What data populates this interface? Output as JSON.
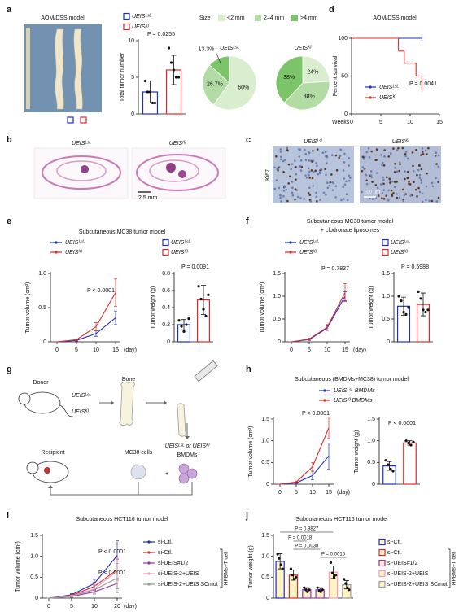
{
  "figure": {
    "panel_labels": [
      "a",
      "b",
      "c",
      "d",
      "e",
      "f",
      "g",
      "h",
      "i",
      "j"
    ],
    "a_photo_title": "AOM/DSS model",
    "size_legend": {
      "title": "Size",
      "labels": [
        "<2 mm",
        "2–4 mm",
        ">4 mm"
      ],
      "colors": [
        "#d9edcf",
        "#b3dca5",
        "#7cc46a"
      ]
    },
    "b_labels": [
      "UEISᴸˢᴸ",
      "UEISᴷᴵ"
    ],
    "b_scale": "2.5 mm",
    "c_labels": [
      "UEISᴸˢᴸ",
      "UEISᴷᴵ"
    ],
    "c_stain": "Ki67",
    "c_scale": "100 μm",
    "g": {
      "donor": "Donor",
      "genotypes": [
        "UEISᴸˢᴸ",
        "UEISᴷᴵ"
      ],
      "bone": "Bone",
      "recipient": "Recipient",
      "cells": "MC38 cells",
      "plus": "+",
      "bmdm_line1": "UEISᴸˢᴸ or UEISᴷᴵ",
      "bmdm_line2": "BMDMs"
    }
  },
  "chart_data": [
    {
      "type": "bar",
      "ylabel": "Total tumor number",
      "categories": [
        "UEISᴸˢᴸ",
        "UEISᴷᴵ"
      ],
      "values": [
        3,
        6
      ],
      "errors": [
        1.5,
        2
      ],
      "points": [
        [
          4.5,
          3,
          3,
          1.5,
          1.5
        ],
        [
          9,
          7,
          6,
          5,
          5
        ]
      ],
      "colors": [
        "#1f2fbf",
        "#e02828"
      ],
      "fill": "#ffffff",
      "ylim": [
        0,
        10
      ],
      "yticks": [
        0,
        5,
        10
      ],
      "annotations": [
        "P = 0.0255"
      ]
    },
    {
      "type": "pie",
      "title": "UEISᴸˢᴸ",
      "values": [
        60,
        26.7,
        13.3
      ],
      "value_labels": [
        "60%",
        "26.7%",
        "13.3%"
      ],
      "colors": [
        "#d9edcf",
        "#b3dca5",
        "#7cc46a"
      ]
    },
    {
      "type": "pie",
      "title": "UEISᴷᴵ",
      "values": [
        24,
        38,
        38
      ],
      "value_labels": [
        "24%",
        "38%",
        "38%"
      ],
      "colors": [
        "#d9edcf",
        "#b3dca5",
        "#7cc46a"
      ]
    },
    {
      "type": "line",
      "step": true,
      "title": "AOM/DSS model",
      "xlabel": "Weeks",
      "ylabel": "Percent survival",
      "xlim": [
        0,
        15
      ],
      "xticks": [
        0,
        5,
        10,
        15
      ],
      "ylim": [
        0,
        100
      ],
      "yticks": [
        0,
        50,
        100
      ],
      "series": [
        {
          "name": "UEISᴸˢᴸ",
          "color": "#1f2fbf",
          "x": [
            0,
            12
          ],
          "values": [
            100,
            100
          ]
        },
        {
          "name": "UEISᴷᴵ",
          "color": "#e02828",
          "x": [
            0,
            8,
            9,
            11,
            12
          ],
          "values": [
            100,
            83,
            67,
            50,
            33
          ]
        }
      ],
      "annotations": [
        "P = 0.0041"
      ]
    },
    {
      "type": "line",
      "title": "Subcutaneous MC38 tumor model",
      "xlabel": "(day)",
      "ylabel": "Tumor volume (cm³)",
      "categories": [
        "0",
        "5",
        "10",
        "15"
      ],
      "ylim": [
        0,
        1
      ],
      "yticks": [
        0,
        0.5,
        {
          "value": 1,
          "label": "1.0"
        }
      ],
      "series": [
        {
          "name": "UEISᴸˢᴸ",
          "color": "#1f2fbf",
          "values": [
            0,
            0.02,
            0.12,
            0.35
          ],
          "errors": [
            0,
            0.01,
            0.04,
            0.1
          ]
        },
        {
          "name": "UEISᴷᴵ",
          "color": "#e02828",
          "values": [
            0,
            0.03,
            0.22,
            0.72
          ],
          "errors": [
            0,
            0.01,
            0.06,
            0.2
          ]
        }
      ],
      "annotations": [
        "P < 0.0001"
      ]
    },
    {
      "type": "bar",
      "ylabel": "Tumor weight (g)",
      "categories": [
        "UEISᴸˢᴸ",
        "UEISᴷᴵ"
      ],
      "values": [
        0.2,
        0.49
      ],
      "errors": [
        0.06,
        0.17
      ],
      "points": [
        [
          0.25,
          0.18,
          0.12,
          0.2,
          0.27
        ],
        [
          0.65,
          0.5,
          0.38,
          0.3,
          0.55
        ]
      ],
      "colors": [
        "#1f2fbf",
        "#e02828"
      ],
      "fill": "#ffffff",
      "ylim": [
        0,
        0.8
      ],
      "yticks": [
        0,
        0.2,
        0.4,
        0.6,
        0.8
      ],
      "annotations": [
        "P = 0.0091"
      ]
    },
    {
      "type": "line",
      "title": "Subcutaneous MC38 tumor model",
      "subtitle": "+ clodronate liposomes",
      "xlabel": "(day)",
      "ylabel": "Tumor volume (cm³)",
      "categories": [
        "0",
        "5",
        "10",
        "15"
      ],
      "ylim": [
        0,
        1.5
      ],
      "yticks": [
        0,
        0.5,
        {
          "value": 1,
          "label": "1.0"
        },
        1.5
      ],
      "series": [
        {
          "name": "UEISᴸˢᴸ",
          "color": "#1f2fbf",
          "values": [
            0,
            0.05,
            0.3,
            1.0
          ],
          "errors": [
            0,
            0.02,
            0.05,
            0.1
          ]
        },
        {
          "name": "UEISᴷᴵ",
          "color": "#e02828",
          "values": [
            0,
            0.06,
            0.32,
            1.08
          ],
          "errors": [
            0,
            0.02,
            0.06,
            0.2
          ]
        }
      ],
      "annotations": [
        "P = 0.7837"
      ]
    },
    {
      "type": "bar",
      "ylabel": "Tumor weight (g)",
      "categories": [
        "UEISᴸˢᴸ",
        "UEISᴷᴵ"
      ],
      "values": [
        0.78,
        0.82
      ],
      "errors": [
        0.2,
        0.25
      ],
      "points": [
        [
          1.0,
          0.9,
          0.65,
          0.6,
          0.75
        ],
        [
          1.1,
          0.95,
          0.7,
          0.65,
          0.7
        ]
      ],
      "colors": [
        "#1f2fbf",
        "#e02828"
      ],
      "fill": "#ffffff",
      "ylim": [
        0,
        1.5
      ],
      "yticks": [
        0,
        0.5,
        {
          "value": 1,
          "label": "1.0"
        },
        1.5
      ],
      "annotations": [
        "P = 0.5988"
      ]
    },
    {
      "type": "line",
      "title": "Subcutaneous (BMDMs+MC38) tumor model",
      "xlabel": "(day)",
      "ylabel": "Tumor volume (cm³)",
      "categories": [
        "0",
        "5",
        "10",
        "15"
      ],
      "ylim": [
        0,
        1.5
      ],
      "yticks": [
        0,
        0.5,
        {
          "value": 1,
          "label": "1.0"
        },
        1.5
      ],
      "series": [
        {
          "name": "UEISᴸˢᴸ BMDMs",
          "color": "#1f2fbf",
          "values": [
            0,
            0.03,
            0.2,
            0.65
          ],
          "errors": [
            0,
            0.02,
            0.1,
            0.3
          ]
        },
        {
          "name": "UEISᴷᴵ BMDMs",
          "color": "#e02828",
          "values": [
            0,
            0.05,
            0.4,
            1.3
          ],
          "errors": [
            0,
            0.02,
            0.1,
            0.25
          ]
        }
      ],
      "annotations": [
        "P < 0.0001"
      ]
    },
    {
      "type": "bar",
      "ylabel": "Tumor weight (g)",
      "categories": [
        null,
        null
      ],
      "values": [
        0.42,
        0.95
      ],
      "errors": [
        0.1,
        0.05
      ],
      "points": [
        [
          0.55,
          0.45,
          0.35,
          0.3
        ],
        [
          1.0,
          0.95,
          0.9,
          0.97
        ]
      ],
      "colors": [
        "#1f2fbf",
        "#e02828"
      ],
      "fill": "#ffffff",
      "ylim": [
        0,
        1.5
      ],
      "yticks": [
        0,
        0.5,
        {
          "value": 1,
          "label": "1.0"
        },
        1.5
      ],
      "annotations": [
        "P < 0.0001"
      ]
    },
    {
      "type": "line",
      "title": "Subcutaneous HCT116 tumor model",
      "xlabel": "(day)",
      "ylabel": "Tumor volume (cm³)",
      "categories": [
        "0",
        "5",
        "10",
        "20"
      ],
      "ylim": [
        0,
        1.5
      ],
      "yticks": [
        0,
        0.5,
        {
          "value": 1,
          "label": "1.0"
        },
        1.5
      ],
      "series": [
        {
          "name": "si-Ctl.",
          "color": "#1f2fbf",
          "values": [
            0,
            0.08,
            0.35,
            1.02
          ],
          "errors": [
            0,
            0.03,
            0.1,
            0.35
          ]
        },
        {
          "name": "si-Ctl.",
          "color": "#e02828",
          "values": [
            0,
            0.06,
            0.28,
            0.68
          ],
          "errors": [
            0,
            0.03,
            0.1,
            0.25
          ]
        },
        {
          "name": "si-UEIS#1/2",
          "color": "#9b2fae",
          "values": [
            0,
            0.04,
            0.15,
            0.35
          ],
          "errors": [
            0,
            0.02,
            0.05,
            0.12
          ]
        },
        {
          "name": "si-UEIS-2+UEIS",
          "color": "#f29ac0",
          "values": [
            0,
            0.05,
            0.22,
            0.65
          ],
          "errors": [
            0,
            0.02,
            0.1,
            0.3
          ]
        },
        {
          "name": "si-UEIS-2+UEIS SCmut",
          "color": "#9a9a9a",
          "values": [
            0,
            0.04,
            0.2,
            0.48
          ],
          "errors": [
            0,
            0.02,
            0.1,
            0.35
          ]
        }
      ],
      "annotations": [
        "P < 0.0001",
        "P < 0.0001"
      ],
      "bracket_label": "HPBMs+T cell"
    },
    {
      "type": "bar",
      "title": "Subcutaneous HCT116 tumor model",
      "ylabel": "Tumor weight (g)",
      "categories": [
        null,
        null,
        null,
        null,
        null,
        null
      ],
      "values": [
        0.88,
        0.55,
        0.2,
        0.2,
        0.62,
        0.32
      ],
      "errors": [
        0.18,
        0.12,
        0.05,
        0.05,
        0.15,
        0.1
      ],
      "points": [
        [
          1.05,
          0.95,
          0.8,
          0.7
        ],
        [
          0.7,
          0.55,
          0.45,
          0.5
        ],
        [
          0.25,
          0.2,
          0.15,
          0.2
        ],
        [
          0.25,
          0.18,
          0.15,
          0.2
        ],
        [
          0.85,
          0.6,
          0.5,
          0.55
        ],
        [
          0.45,
          0.35,
          0.25,
          0.2
        ]
      ],
      "colors": [
        "#1f2fbf",
        "#e02828",
        "#9b2fae",
        "#9b2fae",
        "#f29ac0",
        "#9a9a9a"
      ],
      "fill": "#fff3c4",
      "legend": [
        {
          "name": "si-Ctl.",
          "color": "#1f2fbf"
        },
        {
          "name": "si-Ctl.",
          "color": "#e02828"
        },
        {
          "name": "si-UEIS#1/2",
          "color": "#9b2fae"
        },
        {
          "name": "si-UEIS-2+UEIS",
          "color": "#f29ac0"
        },
        {
          "name": "si-UEIS-2+UEIS SCmut",
          "color": "#9a9a9a"
        }
      ],
      "ylim": [
        0,
        1.5
      ],
      "yticks": [
        0,
        0.5,
        {
          "value": 1,
          "label": "1.0"
        },
        1.5
      ],
      "annotations": [
        "P = 0.9827",
        "P = 0.0018",
        "P = 0.0038",
        "P = 0.0015"
      ],
      "bracket_label": "HPBMs+T cell"
    }
  ]
}
